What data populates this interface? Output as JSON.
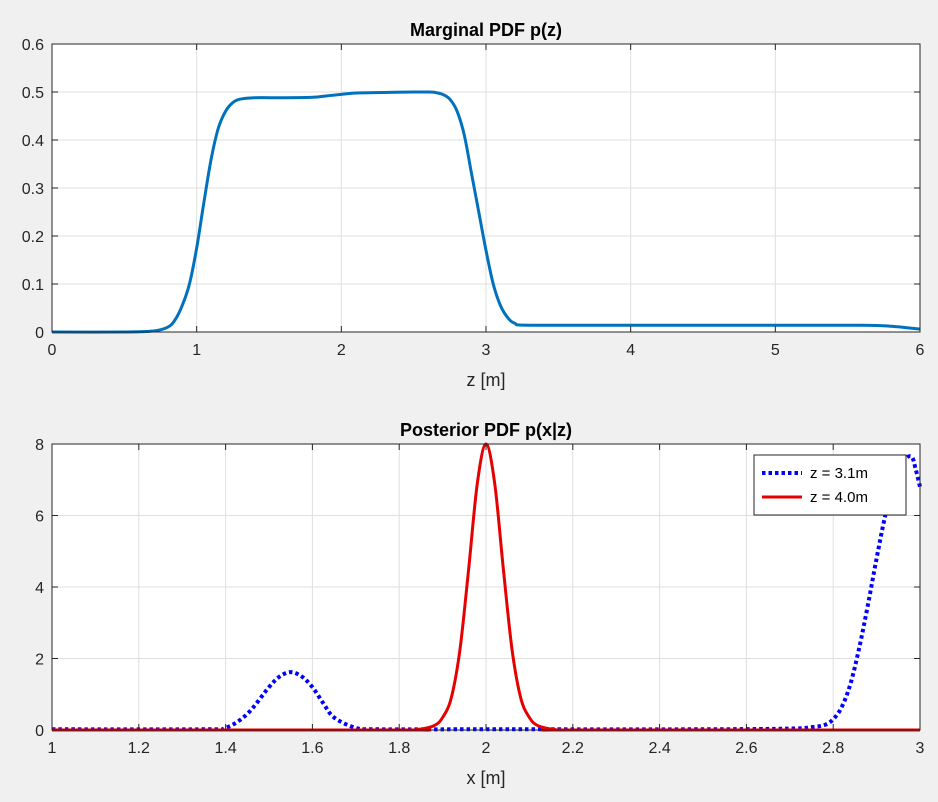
{
  "chart_data": [
    {
      "type": "line",
      "title": "Marginal PDF p(z)",
      "xlabel": "z [m]",
      "ylabel": "",
      "xlim": [
        0,
        6
      ],
      "ylim": [
        0,
        0.6
      ],
      "xticks": [
        0,
        1,
        2,
        3,
        4,
        5,
        6
      ],
      "yticks": [
        0,
        0.1,
        0.2,
        0.3,
        0.4,
        0.5,
        0.6
      ],
      "xtick_labels": [
        "0",
        "1",
        "2",
        "3",
        "4",
        "5",
        "6"
      ],
      "ytick_labels": [
        "0",
        "0.1",
        "0.2",
        "0.3",
        "0.4",
        "0.5",
        "0.6"
      ],
      "grid": true,
      "legend": null,
      "series": [
        {
          "color": "#0072bd",
          "style": "solid",
          "x": [
            0,
            0.5,
            0.7,
            0.8,
            0.85,
            0.9,
            0.95,
            1.0,
            1.05,
            1.1,
            1.15,
            1.2,
            1.25,
            1.3,
            1.4,
            1.6,
            1.8,
            1.9,
            2.0,
            2.1,
            2.3,
            2.5,
            2.6,
            2.65,
            2.7,
            2.75,
            2.8,
            2.85,
            2.9,
            2.95,
            3.0,
            3.05,
            3.1,
            3.15,
            3.2,
            3.3,
            4.0,
            5.0,
            5.6,
            5.8,
            6.0
          ],
          "y": [
            0,
            0,
            0.002,
            0.01,
            0.025,
            0.055,
            0.1,
            0.175,
            0.27,
            0.36,
            0.425,
            0.46,
            0.478,
            0.485,
            0.488,
            0.488,
            0.489,
            0.492,
            0.495,
            0.498,
            0.499,
            0.5,
            0.5,
            0.499,
            0.495,
            0.485,
            0.46,
            0.41,
            0.33,
            0.25,
            0.17,
            0.1,
            0.055,
            0.03,
            0.018,
            0.014,
            0.014,
            0.014,
            0.014,
            0.012,
            0.006
          ]
        }
      ]
    },
    {
      "type": "line",
      "title": "Posterior PDF p(x|z)",
      "xlabel": "x [m]",
      "ylabel": "",
      "xlim": [
        1,
        3
      ],
      "ylim": [
        0,
        8
      ],
      "xticks": [
        1,
        1.2,
        1.4,
        1.6,
        1.8,
        2,
        2.2,
        2.4,
        2.6,
        2.8,
        3
      ],
      "yticks": [
        0,
        2,
        4,
        6,
        8
      ],
      "xtick_labels": [
        "1",
        "1.2",
        "1.4",
        "1.6",
        "1.8",
        "2",
        "2.2",
        "2.4",
        "2.6",
        "2.8",
        "3"
      ],
      "ytick_labels": [
        "0",
        "2",
        "4",
        "6",
        "8"
      ],
      "grid": true,
      "legend": "top-right",
      "series": [
        {
          "name": "z = 3.1m",
          "color": "#0000ff",
          "style": "dotted",
          "x": [
            1.0,
            1.35,
            1.4,
            1.45,
            1.5,
            1.525,
            1.55,
            1.575,
            1.6,
            1.625,
            1.65,
            1.7,
            1.75,
            2.0,
            2.5,
            2.7,
            2.75,
            2.78,
            2.8,
            2.82,
            2.84,
            2.86,
            2.88,
            2.9,
            2.92,
            2.94,
            2.96,
            2.98,
            2.99,
            3.0
          ],
          "y": [
            0.02,
            0.02,
            0.06,
            0.45,
            1.2,
            1.5,
            1.62,
            1.5,
            1.2,
            0.75,
            0.35,
            0.06,
            0.02,
            0.02,
            0.02,
            0.04,
            0.08,
            0.14,
            0.3,
            0.65,
            1.3,
            2.3,
            3.5,
            4.8,
            6.0,
            6.9,
            7.5,
            7.65,
            7.3,
            6.8
          ]
        },
        {
          "name": "z = 4.0m",
          "color": "#e60000",
          "style": "solid",
          "x": [
            1.0,
            1.8,
            1.84,
            1.88,
            1.9,
            1.92,
            1.94,
            1.96,
            1.98,
            2.0,
            2.02,
            2.04,
            2.06,
            2.08,
            2.1,
            2.12,
            2.16,
            2.2,
            3.0
          ],
          "y": [
            0,
            0,
            0.01,
            0.12,
            0.35,
            0.9,
            2.25,
            4.5,
            6.9,
            8.0,
            6.9,
            4.5,
            2.25,
            0.9,
            0.35,
            0.12,
            0.01,
            0,
            0
          ]
        }
      ]
    }
  ]
}
